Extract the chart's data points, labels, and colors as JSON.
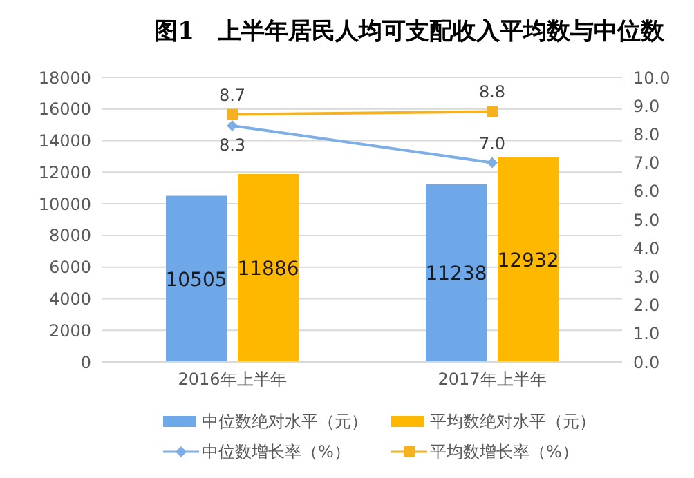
{
  "chart_data": {
    "type": "bar",
    "title": "图1　上半年居民人均可支配收入平均数与中位数",
    "categories": [
      "2016年上半年",
      "2017年上半年"
    ],
    "series": [
      {
        "name": "中位数绝对水平（元）",
        "color": "#6fa8e8",
        "values": [
          10505,
          11238
        ]
      },
      {
        "name": "平均数绝对水平（元）",
        "color": "#ffb800",
        "values": [
          11886,
          12932
        ]
      },
      {
        "name": "中位数增长率（%）",
        "type": "line",
        "axis": "y2",
        "color": "#7eaee6",
        "marker": "diamond",
        "values": [
          8.3,
          7.0
        ],
        "value_labels": [
          "8.3",
          "7.0"
        ]
      },
      {
        "name": "平均数增长率（%）",
        "type": "line",
        "axis": "y2",
        "color": "#f5b120",
        "marker": "square",
        "values": [
          8.7,
          8.8
        ],
        "value_labels": [
          "8.7",
          "8.8"
        ]
      }
    ],
    "ylim": [
      0,
      18000
    ],
    "yticks": [
      0,
      2000,
      4000,
      6000,
      8000,
      10000,
      12000,
      14000,
      16000,
      18000
    ],
    "y2lim": [
      0,
      10
    ],
    "y2ticks": [
      {
        "value": 0,
        "label": "0.0"
      },
      {
        "value": 1,
        "label": "1.0"
      },
      {
        "value": 2,
        "label": "2.0"
      },
      {
        "value": 3,
        "label": "3.0"
      },
      {
        "value": 4,
        "label": "4.0"
      },
      {
        "value": 5,
        "label": "5.0"
      },
      {
        "value": 6,
        "label": "6.0"
      },
      {
        "value": 7,
        "label": "7.0"
      },
      {
        "value": 8,
        "label": "8.0"
      },
      {
        "value": 9,
        "label": "9.0"
      },
      {
        "value": 10,
        "label": "10.0"
      }
    ],
    "grid": "y",
    "legend": "bottom",
    "data_labels": true
  }
}
